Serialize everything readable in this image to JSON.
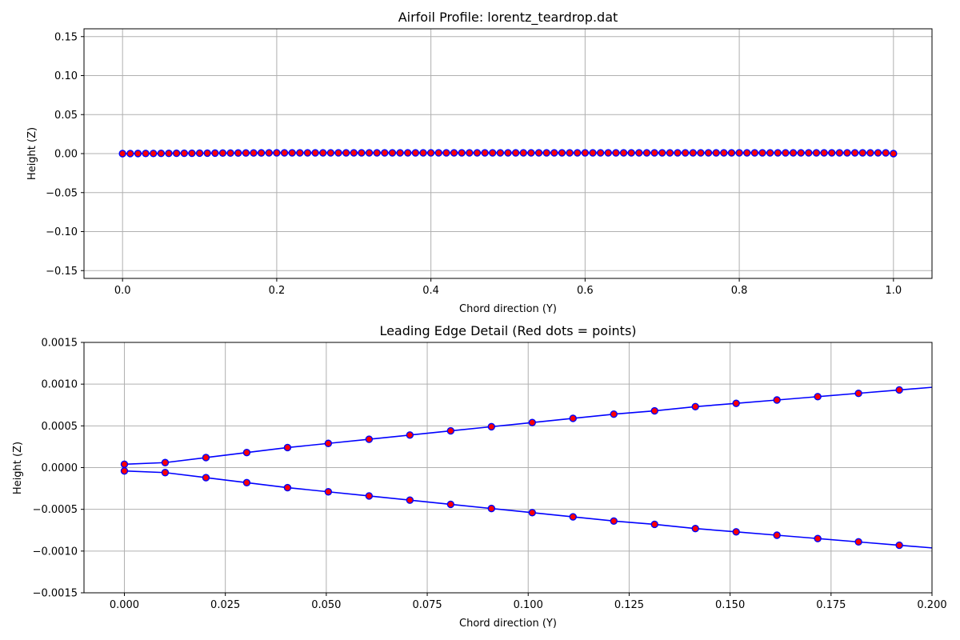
{
  "chart_data": [
    {
      "id": "profile",
      "type": "line",
      "title": "Airfoil Profile: lorentz_teardrop.dat",
      "xlabel": "Chord direction (Y)",
      "ylabel": "Height (Z)",
      "xlim": [
        -0.05,
        1.05
      ],
      "ylim": [
        -0.16,
        0.16
      ],
      "xticks": [
        0.0,
        0.2,
        0.4,
        0.6,
        0.8,
        1.0
      ],
      "xtick_labels": [
        "0.0",
        "0.2",
        "0.4",
        "0.6",
        "0.8",
        "1.0"
      ],
      "yticks": [
        -0.15,
        -0.1,
        -0.05,
        0.0,
        0.05,
        0.1,
        0.15
      ],
      "ytick_labels": [
        "−0.15",
        "−0.10",
        "−0.05",
        "0.00",
        "0.05",
        "0.10",
        "0.15"
      ],
      "grid": true,
      "line_color": "#0000ff",
      "marker_face": "#ff0000",
      "marker_edge": "#0000ff",
      "series": [
        {
          "x": [
            0.0,
            0.01,
            0.02,
            0.03,
            0.04,
            0.05,
            0.06,
            0.07,
            0.08,
            0.09,
            0.1,
            0.11,
            0.12,
            0.13,
            0.14,
            0.15,
            0.16,
            0.17,
            0.18,
            0.19,
            0.2,
            0.21,
            0.22,
            0.23,
            0.24,
            0.25,
            0.26,
            0.27,
            0.28,
            0.29,
            0.3,
            0.31,
            0.32,
            0.33,
            0.34,
            0.35,
            0.36,
            0.37,
            0.38,
            0.39,
            0.4,
            0.41,
            0.42,
            0.43,
            0.44,
            0.45,
            0.46,
            0.47,
            0.48,
            0.49,
            0.5,
            0.51,
            0.52,
            0.53,
            0.54,
            0.55,
            0.56,
            0.57,
            0.58,
            0.59,
            0.6,
            0.61,
            0.62,
            0.63,
            0.64,
            0.65,
            0.66,
            0.67,
            0.68,
            0.69,
            0.7,
            0.71,
            0.72,
            0.73,
            0.74,
            0.75,
            0.76,
            0.77,
            0.78,
            0.79,
            0.8,
            0.81,
            0.82,
            0.83,
            0.84,
            0.85,
            0.86,
            0.87,
            0.88,
            0.89,
            0.9,
            0.91,
            0.92,
            0.93,
            0.94,
            0.95,
            0.96,
            0.97,
            0.98,
            0.99,
            1.0
          ],
          "y": [
            0.0,
            6e-05,
            0.00012,
            0.00018,
            0.00024,
            0.0003,
            0.00035,
            0.0004,
            0.00045,
            0.0005,
            0.00055,
            0.0006,
            0.00065,
            0.0007,
            0.00074,
            0.00078,
            0.00082,
            0.00086,
            0.0009,
            0.00094,
            0.00098,
            0.001,
            0.001,
            0.001,
            0.001,
            0.001,
            0.001,
            0.001,
            0.001,
            0.001,
            0.001,
            0.001,
            0.001,
            0.001,
            0.001,
            0.001,
            0.001,
            0.001,
            0.001,
            0.001,
            0.001,
            0.001,
            0.001,
            0.001,
            0.001,
            0.001,
            0.001,
            0.001,
            0.001,
            0.001,
            0.001,
            0.001,
            0.001,
            0.001,
            0.001,
            0.001,
            0.001,
            0.001,
            0.001,
            0.001,
            0.001,
            0.001,
            0.001,
            0.001,
            0.001,
            0.001,
            0.001,
            0.001,
            0.001,
            0.001,
            0.001,
            0.001,
            0.001,
            0.001,
            0.001,
            0.001,
            0.001,
            0.001,
            0.001,
            0.001,
            0.001,
            0.001,
            0.001,
            0.001,
            0.001,
            0.001,
            0.001,
            0.001,
            0.001,
            0.001,
            0.001,
            0.001,
            0.001,
            0.001,
            0.001,
            0.001,
            0.001,
            0.001,
            0.001,
            0.001,
            0.0
          ]
        }
      ]
    },
    {
      "id": "leading-edge",
      "type": "line",
      "title": "Leading Edge Detail (Red dots = points)",
      "xlabel": "Chord direction (Y)",
      "ylabel": "Height (Z)",
      "xlim": [
        -0.01,
        0.2
      ],
      "ylim": [
        -0.0015,
        0.0015
      ],
      "xticks": [
        0.0,
        0.025,
        0.05,
        0.075,
        0.1,
        0.125,
        0.15,
        0.175,
        0.2
      ],
      "xtick_labels": [
        "0.000",
        "0.025",
        "0.050",
        "0.075",
        "0.100",
        "0.125",
        "0.150",
        "0.175",
        "0.200"
      ],
      "yticks": [
        -0.0015,
        -0.001,
        -0.0005,
        0.0,
        0.0005,
        0.001,
        0.0015
      ],
      "ytick_labels": [
        "−0.0015",
        "−0.0010",
        "−0.0005",
        "0.0000",
        "0.0005",
        "0.0010",
        "0.0015"
      ],
      "grid": true,
      "line_color": "#0000ff",
      "marker_face": "#ff0000",
      "marker_edge": "#0000ff",
      "series": [
        {
          "x": [
            0.0,
            0.0101,
            0.0202,
            0.0303,
            0.0404,
            0.0505,
            0.0606,
            0.0707,
            0.0808,
            0.0909,
            0.101,
            0.1111,
            0.1212,
            0.1313,
            0.1414,
            0.1515,
            0.1616,
            0.1717,
            0.1818,
            0.1919,
            0.202
          ],
          "y": [
            4e-05,
            6e-05,
            0.00012,
            0.00018,
            0.00024,
            0.00029,
            0.00034,
            0.00039,
            0.00044,
            0.00049,
            0.00054,
            0.00059,
            0.00064,
            0.00068,
            0.00073,
            0.00077,
            0.00081,
            0.00085,
            0.00089,
            0.00093,
            0.00097
          ]
        },
        {
          "x": [
            0.0,
            0.0101,
            0.0202,
            0.0303,
            0.0404,
            0.0505,
            0.0606,
            0.0707,
            0.0808,
            0.0909,
            0.101,
            0.1111,
            0.1212,
            0.1313,
            0.1414,
            0.1515,
            0.1616,
            0.1717,
            0.1818,
            0.1919,
            0.202
          ],
          "y": [
            -4e-05,
            -6e-05,
            -0.00012,
            -0.00018,
            -0.00024,
            -0.00029,
            -0.00034,
            -0.00039,
            -0.00044,
            -0.00049,
            -0.00054,
            -0.00059,
            -0.00064,
            -0.00068,
            -0.00073,
            -0.00077,
            -0.00081,
            -0.00085,
            -0.00089,
            -0.00093,
            -0.00097
          ]
        }
      ]
    }
  ]
}
